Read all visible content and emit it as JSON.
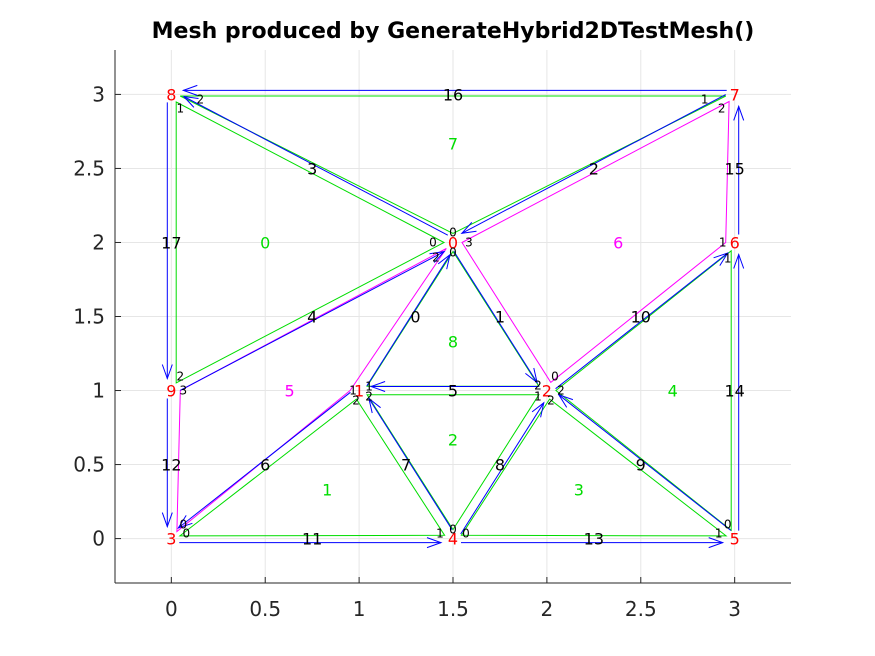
{
  "chart_data": {
    "type": "diagram",
    "title": "Mesh produced by GenerateHybrid2DTestMesh()",
    "xlim": [
      -0.3,
      3.3
    ],
    "ylim": [
      -0.3,
      3.3
    ],
    "x_ticks": [
      0,
      0.5,
      1,
      1.5,
      2,
      2.5,
      3
    ],
    "x_tick_labels": [
      "0",
      "0.5",
      "1",
      "1.5",
      "2",
      "2.5",
      "3"
    ],
    "y_ticks": [
      0,
      0.5,
      1,
      1.5,
      2,
      2.5,
      3
    ],
    "y_tick_labels": [
      "0",
      "0.5",
      "1",
      "1.5",
      "2",
      "2.5",
      "3"
    ],
    "grid": true,
    "colors": {
      "vertex": "#ff0000",
      "edge": "#0000ff",
      "triangle": "#00dd00",
      "quad": "#ff00ff",
      "edge_label": "#000000",
      "local_label": "#000000"
    },
    "vertices": [
      {
        "id": "0",
        "x": 1.5,
        "y": 2
      },
      {
        "id": "1",
        "x": 1,
        "y": 1
      },
      {
        "id": "2",
        "x": 2,
        "y": 1
      },
      {
        "id": "3",
        "x": 0,
        "y": 0
      },
      {
        "id": "4",
        "x": 1.5,
        "y": 0
      },
      {
        "id": "5",
        "x": 3,
        "y": 0
      },
      {
        "id": "6",
        "x": 3,
        "y": 2
      },
      {
        "id": "7",
        "x": 3,
        "y": 3
      },
      {
        "id": "8",
        "x": 0,
        "y": 3
      },
      {
        "id": "9",
        "x": 0,
        "y": 1
      }
    ],
    "edges": [
      {
        "id": "0",
        "x1": 1,
        "y1": 1,
        "x2": 1.5,
        "y2": 2,
        "lx": 1.3,
        "ly": 1.5
      },
      {
        "id": "1",
        "x1": 1.5,
        "y1": 2,
        "x2": 2,
        "y2": 1,
        "lx": 1.75,
        "ly": 1.5
      },
      {
        "id": "2",
        "x1": 3,
        "y1": 3,
        "x2": 1.5,
        "y2": 2,
        "lx": 2.25,
        "ly": 2.5
      },
      {
        "id": "3",
        "x1": 1.5,
        "y1": 2,
        "x2": 0,
        "y2": 3,
        "lx": 0.75,
        "ly": 2.5
      },
      {
        "id": "4",
        "x1": 0,
        "y1": 1,
        "x2": 1.5,
        "y2": 2,
        "lx": 0.75,
        "ly": 1.5
      },
      {
        "id": "5",
        "x1": 2,
        "y1": 1,
        "x2": 1,
        "y2": 1,
        "lx": 1.5,
        "ly": 1
      },
      {
        "id": "6",
        "x1": 1,
        "y1": 1,
        "x2": 0,
        "y2": 0,
        "lx": 0.5,
        "ly": 0.5
      },
      {
        "id": "7",
        "x1": 1.5,
        "y1": 0,
        "x2": 1,
        "y2": 1,
        "lx": 1.25,
        "ly": 0.5
      },
      {
        "id": "8",
        "x1": 1.5,
        "y1": 0,
        "x2": 2,
        "y2": 1,
        "lx": 1.75,
        "ly": 0.5
      },
      {
        "id": "9",
        "x1": 3,
        "y1": 0,
        "x2": 2,
        "y2": 1,
        "lx": 2.5,
        "ly": 0.5
      },
      {
        "id": "10",
        "x1": 2,
        "y1": 1,
        "x2": 3,
        "y2": 2,
        "lx": 2.5,
        "ly": 1.5
      },
      {
        "id": "11",
        "x1": 0,
        "y1": 0,
        "x2": 1.5,
        "y2": 0,
        "lx": 0.75,
        "ly": 0
      },
      {
        "id": "12",
        "x1": 0,
        "y1": 1,
        "x2": 0,
        "y2": 0,
        "lx": 0,
        "ly": 0.5
      },
      {
        "id": "13",
        "x1": 1.5,
        "y1": 0,
        "x2": 3,
        "y2": 0,
        "lx": 2.25,
        "ly": 0
      },
      {
        "id": "14",
        "x1": 3,
        "y1": 0,
        "x2": 3,
        "y2": 2,
        "lx": 3,
        "ly": 1
      },
      {
        "id": "15",
        "x1": 3,
        "y1": 2,
        "x2": 3,
        "y2": 3,
        "lx": 3,
        "ly": 2.5
      },
      {
        "id": "16",
        "x1": 3,
        "y1": 3,
        "x2": 0,
        "y2": 3,
        "lx": 1.5,
        "ly": 3
      },
      {
        "id": "17",
        "x1": 0,
        "y1": 3,
        "x2": 0,
        "y2": 1,
        "lx": 0,
        "ly": 2
      }
    ],
    "cells": [
      {
        "id": "0",
        "kind": "triangle",
        "verts": [
          [
            1.5,
            2
          ],
          [
            0,
            3
          ],
          [
            0,
            1
          ]
        ],
        "centroid": [
          0.5,
          2
        ]
      },
      {
        "id": "1",
        "kind": "triangle",
        "verts": [
          [
            0,
            0
          ],
          [
            1.5,
            0
          ],
          [
            1,
            1
          ]
        ],
        "centroid": [
          0.83,
          0.33
        ]
      },
      {
        "id": "2",
        "kind": "triangle",
        "verts": [
          [
            1.5,
            0
          ],
          [
            2,
            1
          ],
          [
            1,
            1
          ]
        ],
        "centroid": [
          1.5,
          0.67
        ]
      },
      {
        "id": "3",
        "kind": "triangle",
        "verts": [
          [
            1.5,
            0
          ],
          [
            3,
            0
          ],
          [
            2,
            1
          ]
        ],
        "centroid": [
          2.17,
          0.33
        ]
      },
      {
        "id": "4",
        "kind": "triangle",
        "verts": [
          [
            3,
            0
          ],
          [
            3,
            2
          ],
          [
            2,
            1
          ]
        ],
        "centroid": [
          2.67,
          1
        ]
      },
      {
        "id": "5",
        "kind": "quad",
        "verts": [
          [
            1,
            1
          ],
          [
            0,
            0
          ],
          [
            0,
            1
          ],
          [
            1.5,
            2
          ]
        ],
        "centroid": [
          0.63,
          1
        ]
      },
      {
        "id": "6",
        "kind": "quad",
        "verts": [
          [
            2,
            1
          ],
          [
            3,
            2
          ],
          [
            3,
            3
          ],
          [
            1.5,
            2
          ]
        ],
        "centroid": [
          2.38,
          2
        ]
      },
      {
        "id": "7",
        "kind": "triangle",
        "verts": [
          [
            3,
            3
          ],
          [
            0,
            3
          ],
          [
            1.5,
            2
          ]
        ],
        "centroid": [
          1.5,
          2.67
        ]
      },
      {
        "id": "8",
        "kind": "triangle",
        "verts": [
          [
            1.5,
            2
          ],
          [
            1,
            1
          ],
          [
            2,
            1
          ]
        ],
        "centroid": [
          1.5,
          1.33
        ]
      }
    ],
    "local_labels": [
      {
        "t": "0",
        "x": 1.5,
        "y": 2,
        "dx": 0,
        "dy": -10
      },
      {
        "t": "0",
        "x": 1.5,
        "y": 2,
        "dx": -20,
        "dy": 0
      },
      {
        "t": "0",
        "x": 1.5,
        "y": 2,
        "dx": 0,
        "dy": 10
      },
      {
        "t": "2",
        "x": 1.5,
        "y": 2,
        "dx": -17,
        "dy": 15
      },
      {
        "t": "3",
        "x": 1.5,
        "y": 2,
        "dx": 16,
        "dy": 0
      },
      {
        "t": "1",
        "x": 0,
        "y": 3,
        "dx": 9,
        "dy": 14
      },
      {
        "t": "2",
        "x": 0,
        "y": 3,
        "dx": 29,
        "dy": 5
      },
      {
        "t": "1",
        "x": 3,
        "y": 3,
        "dx": -30,
        "dy": 5
      },
      {
        "t": "2",
        "x": 3,
        "y": 3,
        "dx": -13,
        "dy": 14
      },
      {
        "t": "1",
        "x": 3,
        "y": 2,
        "dx": -12,
        "dy": 0
      },
      {
        "t": "1",
        "x": 3,
        "y": 2,
        "dx": -7,
        "dy": 16
      },
      {
        "t": "0",
        "x": 2,
        "y": 1,
        "dx": 8,
        "dy": -14
      },
      {
        "t": "2",
        "x": 2,
        "y": 1,
        "dx": -9,
        "dy": -5
      },
      {
        "t": "1",
        "x": 2,
        "y": 1,
        "dx": -9,
        "dy": 6
      },
      {
        "t": "2",
        "x": 2,
        "y": 1,
        "dx": 4,
        "dy": 10
      },
      {
        "t": "2",
        "x": 2,
        "y": 1,
        "dx": 14,
        "dy": 0
      },
      {
        "t": "1",
        "x": 1,
        "y": 1,
        "dx": -6,
        "dy": 0
      },
      {
        "t": "1",
        "x": 1,
        "y": 1,
        "dx": 10,
        "dy": -4
      },
      {
        "t": "2",
        "x": 1,
        "y": 1,
        "dx": -3,
        "dy": 10
      },
      {
        "t": "2",
        "x": 1,
        "y": 1,
        "dx": 10,
        "dy": 6
      },
      {
        "t": "2",
        "x": 0,
        "y": 1,
        "dx": 9,
        "dy": -14
      },
      {
        "t": "3",
        "x": 0,
        "y": 1,
        "dx": 12,
        "dy": 0
      },
      {
        "t": "0",
        "x": 0,
        "y": 0,
        "dx": 12,
        "dy": -14
      },
      {
        "t": "0",
        "x": 0,
        "y": 0,
        "dx": 15,
        "dy": -5
      },
      {
        "t": "1",
        "x": 1.5,
        "y": 0,
        "dx": -13,
        "dy": -5
      },
      {
        "t": "0",
        "x": 1.5,
        "y": 0,
        "dx": 0,
        "dy": -9
      },
      {
        "t": "0",
        "x": 1.5,
        "y": 0,
        "dx": 13,
        "dy": -5
      },
      {
        "t": "1",
        "x": 3,
        "y": 0,
        "dx": -16,
        "dy": -5
      },
      {
        "t": "0",
        "x": 3,
        "y": 0,
        "dx": -7,
        "dy": -14
      }
    ]
  }
}
